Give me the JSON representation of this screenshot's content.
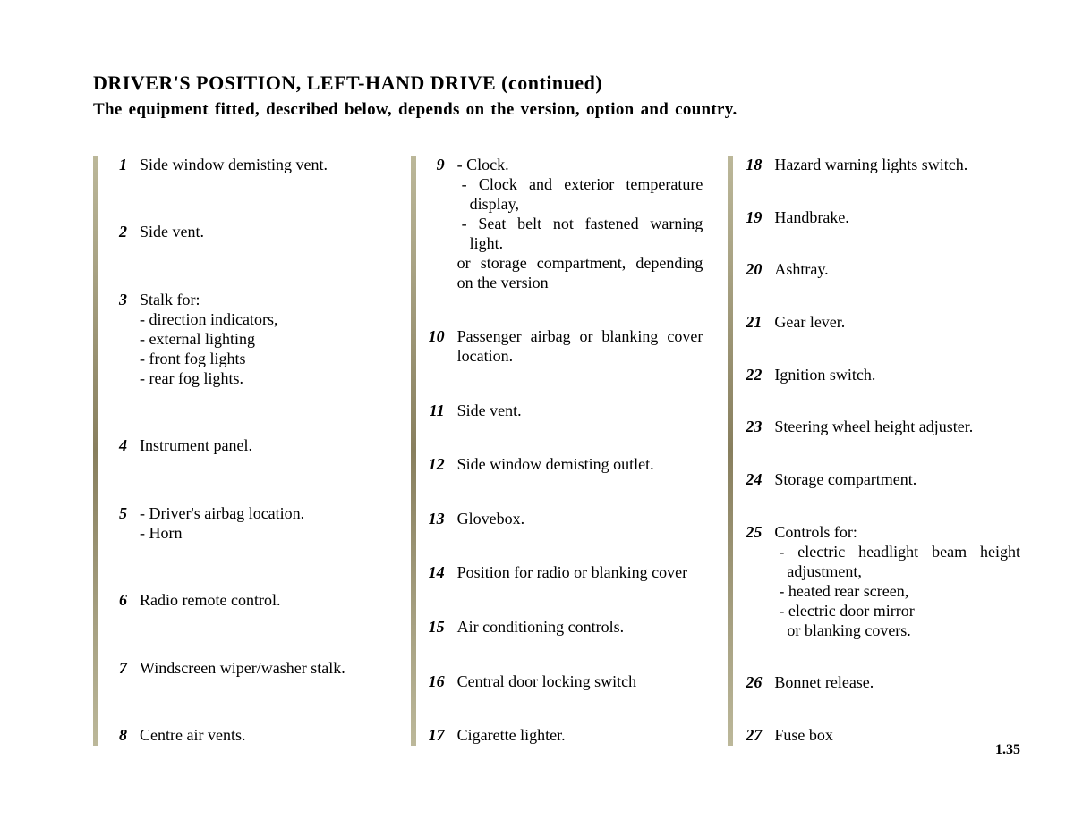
{
  "heading_main": "DRIVER'S POSITION, LEFT-HAND DRIVE ",
  "heading_cont": "(continued)",
  "subheading": "The equipment fitted, described below, depends on the version, option and country.",
  "page_number": "1.35",
  "columns": [
    [
      {
        "n": "1",
        "lines": [
          "Side window demisting vent."
        ]
      },
      {
        "n": "2",
        "lines": [
          "Side vent."
        ]
      },
      {
        "n": "3",
        "lines": [
          "Stalk for:",
          "- direction indicators,",
          "- external lighting",
          "- front fog lights",
          "- rear fog lights."
        ]
      },
      {
        "n": "4",
        "lines": [
          "Instrument panel."
        ]
      },
      {
        "n": "5",
        "lines": [
          "- Driver's airbag location.",
          "- Horn"
        ]
      },
      {
        "n": "6",
        "lines": [
          "Radio remote control."
        ]
      },
      {
        "n": "7",
        "lines": [
          "Windscreen wiper/washer stalk."
        ]
      },
      {
        "n": "8",
        "lines": [
          "Centre air vents."
        ]
      }
    ],
    [
      {
        "n": "9",
        "lines": [
          "- Clock.",
          "- Clock and exterior temperature display,",
          "- Seat belt not fastened warning light.",
          "or storage compartment, depending on the version"
        ],
        "justify": true,
        "indent": [
          0,
          1,
          1,
          0
        ]
      },
      {
        "n": "10",
        "lines": [
          "Passenger airbag or blanking cover location."
        ],
        "justify": true
      },
      {
        "n": "11",
        "lines": [
          "Side vent."
        ]
      },
      {
        "n": "12",
        "lines": [
          "Side window demisting outlet."
        ]
      },
      {
        "n": "13",
        "lines": [
          "Glovebox."
        ]
      },
      {
        "n": "14",
        "lines": [
          "Position for radio or blanking cover"
        ],
        "justify": true
      },
      {
        "n": "15",
        "lines": [
          "Air conditioning controls."
        ]
      },
      {
        "n": "16",
        "lines": [
          "Central door locking switch"
        ]
      },
      {
        "n": "17",
        "lines": [
          "Cigarette lighter."
        ]
      }
    ],
    [
      {
        "n": "18",
        "lines": [
          "Hazard warning lights switch."
        ]
      },
      {
        "n": "19",
        "lines": [
          "Handbrake."
        ]
      },
      {
        "n": "20",
        "lines": [
          "Ashtray."
        ]
      },
      {
        "n": "21",
        "lines": [
          "Gear lever."
        ]
      },
      {
        "n": "22",
        "lines": [
          "Ignition switch."
        ]
      },
      {
        "n": "23",
        "lines": [
          "Steering wheel height adjuster."
        ]
      },
      {
        "n": "24",
        "lines": [
          "Storage compartment."
        ]
      },
      {
        "n": "25",
        "lines": [
          "Controls for:",
          "- electric headlight beam height adjustment,",
          "- heated rear screen,",
          "- electric door mirror",
          "or blanking covers."
        ],
        "justify": true,
        "indent": [
          0,
          1,
          1,
          1,
          0
        ],
        "indentpad": [
          "",
          "",
          "",
          "",
          "14px"
        ]
      },
      {
        "n": "26",
        "lines": [
          "Bonnet release."
        ]
      },
      {
        "n": "27",
        "lines": [
          "Fuse box"
        ]
      }
    ]
  ],
  "colors": {
    "text": "#000000",
    "background": "#ffffff",
    "bar_top": "#bcb89a",
    "bar_mid": "#887f5e"
  }
}
